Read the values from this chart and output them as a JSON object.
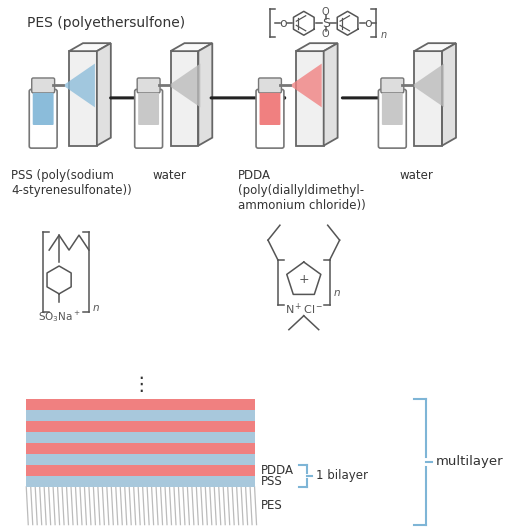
{
  "bg_color": "#ffffff",
  "layer_pdda_color": "#F08080",
  "layer_pss_color": "#A8C8DC",
  "brace_color": "#7EB5D6",
  "arrow_color": "#333333",
  "text_color": "#333333",
  "struct_color": "#555555",
  "bottle_liquid_pss": "#8BBCDA",
  "bottle_liquid_pdda": "#F08080",
  "bottle_liquid_water": "#C8C8C8",
  "spray_pss_color": "#8BBCDA",
  "spray_pdda_color": "#F08080",
  "spray_water_color": "#BBBBBB",
  "panel_face": "#F0F0F0",
  "panel_top": "#FAFAFA",
  "panel_right": "#E0E0E0",
  "panel_edge": "#666666",
  "title_text": "PES (polyethersulfone)",
  "label_pss": "PSS (poly(sodium\n4-styrenesulfonate))",
  "label_water1": "water",
  "label_pdda": "PDDA\n(poly(diallyldimethyl-\nammonium chloride))",
  "label_water2": "water",
  "label_pdda_layer": "PDDA",
  "label_pss_layer": "PSS",
  "label_pes_layer": "PES",
  "label_bilayer": "1 bilayer",
  "label_multilayer": "multilayer",
  "figsize": [
    5.31,
    5.29
  ],
  "dpi": 100
}
